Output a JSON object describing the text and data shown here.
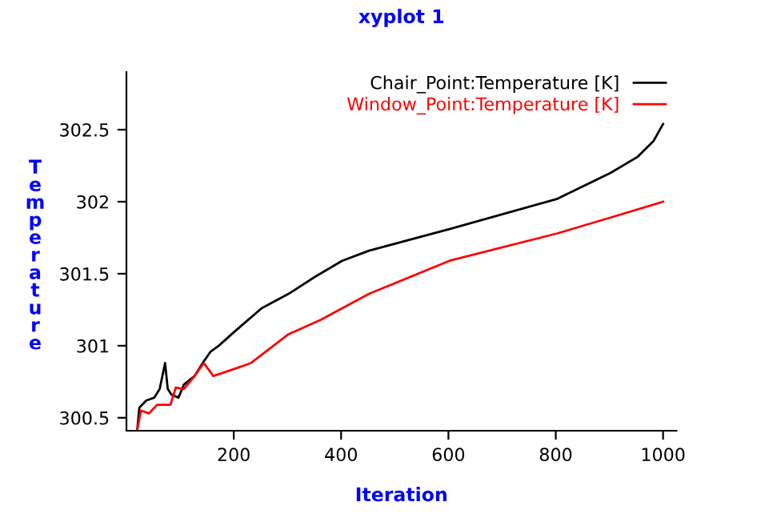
{
  "chart_data": {
    "type": "line",
    "title": "xyplot 1",
    "xlabel": "Iteration",
    "ylabel": "Temperature",
    "xlim": [
      0,
      1025
    ],
    "ylim": [
      300.41,
      302.9
    ],
    "xticks": [
      200,
      400,
      600,
      800,
      1000
    ],
    "yticks": [
      300.5,
      301,
      301.5,
      302,
      302.5
    ],
    "grid": false,
    "legend": "top right",
    "marker": "none",
    "line_style": "solid",
    "series": [
      {
        "name": "Chair_Point:Temperature [K]",
        "color": "#000000",
        "x": [
          20,
          24,
          37,
          52,
          62,
          72,
          77,
          84,
          97,
          107,
          127,
          142,
          157,
          172,
          202,
          252,
          302,
          352,
          402,
          452,
          602,
          803,
          902,
          952,
          982,
          1000
        ],
        "values": [
          300.41,
          300.57,
          300.62,
          300.64,
          300.7,
          300.88,
          300.7,
          300.66,
          300.64,
          300.73,
          300.79,
          300.88,
          300.96,
          301.0,
          301.1,
          301.26,
          301.36,
          301.48,
          301.59,
          301.66,
          301.81,
          302.02,
          302.2,
          302.31,
          302.42,
          302.54
        ]
      },
      {
        "name": "Window_Point:Temperature [K]",
        "color": "#ff0000",
        "x": [
          20,
          27,
          42,
          57,
          82,
          92,
          107,
          127,
          144,
          162,
          202,
          232,
          302,
          362,
          452,
          602,
          803,
          902,
          1000
        ],
        "values": [
          300.41,
          300.55,
          300.53,
          300.59,
          300.59,
          300.71,
          300.7,
          300.79,
          300.88,
          300.79,
          300.84,
          300.88,
          301.08,
          301.18,
          301.36,
          301.59,
          301.78,
          301.89,
          302.0
        ]
      }
    ]
  }
}
